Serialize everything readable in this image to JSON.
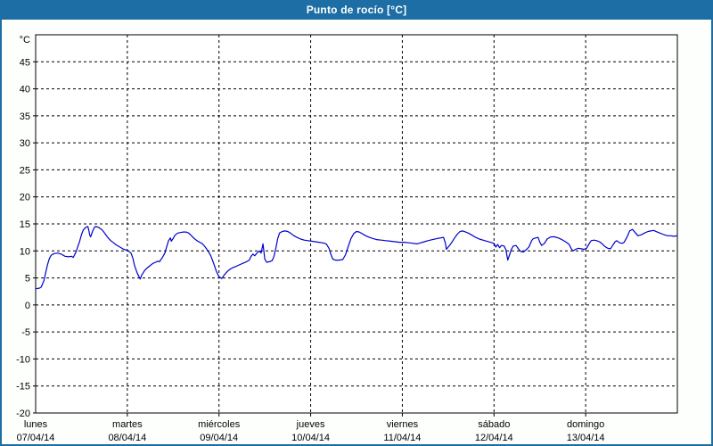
{
  "window": {
    "title": "Punto de rocío [°C]"
  },
  "colors": {
    "accent": "#1C6EA4",
    "line": "#0000CC",
    "grid": "#000000",
    "frame": "#000000",
    "page_bg": "#FCFFFC",
    "plot_bg": "#FEFFFE",
    "title_text": "#FFFFFF",
    "label_text": "#000000"
  },
  "chart_data": {
    "type": "line",
    "title": "Punto de rocío [°C]",
    "xlabel": "",
    "ylabel": "°C",
    "unit_label": "°C",
    "ylim": [
      -20,
      50
    ],
    "yticks": [
      -20,
      -15,
      -10,
      -5,
      0,
      5,
      10,
      15,
      20,
      25,
      30,
      35,
      40,
      45
    ],
    "grid": true,
    "grid_style": "dashed",
    "legend": "none",
    "x_days": [
      {
        "name": "lunes",
        "date": "07/04/14"
      },
      {
        "name": "martes",
        "date": "08/04/14"
      },
      {
        "name": "miércoles",
        "date": "09/04/14"
      },
      {
        "name": "jueves",
        "date": "10/04/14"
      },
      {
        "name": "viernes",
        "date": "11/04/14"
      },
      {
        "name": "sábado",
        "date": "12/04/14"
      },
      {
        "name": "domingo",
        "date": "13/04/14"
      }
    ],
    "series": [
      {
        "name": "Punto de rocío",
        "color": "#0000CC",
        "points": [
          [
            0.0,
            3.0
          ],
          [
            0.04,
            3.1
          ],
          [
            0.06,
            3.3
          ],
          [
            0.09,
            4.5
          ],
          [
            0.11,
            6.0
          ],
          [
            0.13,
            7.5
          ],
          [
            0.15,
            8.6
          ],
          [
            0.17,
            9.2
          ],
          [
            0.2,
            9.5
          ],
          [
            0.24,
            9.6
          ],
          [
            0.28,
            9.4
          ],
          [
            0.32,
            9.0
          ],
          [
            0.36,
            8.9
          ],
          [
            0.39,
            9.0
          ],
          [
            0.41,
            8.8
          ],
          [
            0.44,
            9.8
          ],
          [
            0.46,
            10.8
          ],
          [
            0.48,
            11.8
          ],
          [
            0.5,
            13.0
          ],
          [
            0.52,
            13.9
          ],
          [
            0.55,
            14.4
          ],
          [
            0.57,
            14.5
          ],
          [
            0.58,
            13.8
          ],
          [
            0.59,
            12.9
          ],
          [
            0.6,
            12.6
          ],
          [
            0.62,
            13.6
          ],
          [
            0.64,
            14.3
          ],
          [
            0.65,
            14.5
          ],
          [
            0.68,
            14.4
          ],
          [
            0.7,
            14.2
          ],
          [
            0.73,
            13.8
          ],
          [
            0.76,
            13.1
          ],
          [
            0.79,
            12.4
          ],
          [
            0.82,
            11.9
          ],
          [
            0.85,
            11.5
          ],
          [
            0.88,
            11.1
          ],
          [
            0.92,
            10.7
          ],
          [
            0.95,
            10.4
          ],
          [
            0.98,
            10.2
          ],
          [
            1.01,
            10.0
          ],
          [
            1.04,
            9.6
          ],
          [
            1.06,
            8.7
          ],
          [
            1.08,
            7.2
          ],
          [
            1.11,
            5.8
          ],
          [
            1.14,
            4.8
          ],
          [
            1.16,
            5.6
          ],
          [
            1.19,
            6.4
          ],
          [
            1.22,
            6.9
          ],
          [
            1.25,
            7.3
          ],
          [
            1.28,
            7.7
          ],
          [
            1.31,
            7.9
          ],
          [
            1.33,
            8.1
          ],
          [
            1.35,
            8.0
          ],
          [
            1.38,
            8.7
          ],
          [
            1.41,
            9.6
          ],
          [
            1.43,
            10.8
          ],
          [
            1.45,
            11.9
          ],
          [
            1.47,
            12.4
          ],
          [
            1.48,
            11.8
          ],
          [
            1.5,
            12.3
          ],
          [
            1.52,
            12.9
          ],
          [
            1.55,
            13.3
          ],
          [
            1.58,
            13.4
          ],
          [
            1.61,
            13.5
          ],
          [
            1.64,
            13.5
          ],
          [
            1.67,
            13.3
          ],
          [
            1.7,
            12.8
          ],
          [
            1.73,
            12.3
          ],
          [
            1.76,
            11.9
          ],
          [
            1.79,
            11.6
          ],
          [
            1.82,
            11.3
          ],
          [
            1.85,
            10.7
          ],
          [
            1.88,
            10.0
          ],
          [
            1.91,
            9.1
          ],
          [
            1.94,
            7.8
          ],
          [
            1.97,
            6.3
          ],
          [
            2.0,
            5.2
          ],
          [
            2.03,
            4.9
          ],
          [
            2.06,
            5.6
          ],
          [
            2.09,
            6.2
          ],
          [
            2.12,
            6.6
          ],
          [
            2.15,
            6.9
          ],
          [
            2.18,
            7.1
          ],
          [
            2.22,
            7.4
          ],
          [
            2.26,
            7.7
          ],
          [
            2.3,
            8.0
          ],
          [
            2.33,
            8.3
          ],
          [
            2.35,
            9.0
          ],
          [
            2.37,
            9.4
          ],
          [
            2.39,
            9.1
          ],
          [
            2.42,
            9.7
          ],
          [
            2.44,
            10.0
          ],
          [
            2.46,
            9.6
          ],
          [
            2.48,
            11.3
          ],
          [
            2.5,
            8.5
          ],
          [
            2.52,
            7.9
          ],
          [
            2.55,
            8.0
          ],
          [
            2.58,
            8.2
          ],
          [
            2.6,
            9.0
          ],
          [
            2.62,
            10.5
          ],
          [
            2.64,
            12.2
          ],
          [
            2.66,
            13.3
          ],
          [
            2.69,
            13.6
          ],
          [
            2.72,
            13.7
          ],
          [
            2.75,
            13.6
          ],
          [
            2.78,
            13.3
          ],
          [
            2.81,
            12.9
          ],
          [
            2.85,
            12.5
          ],
          [
            2.89,
            12.2
          ],
          [
            2.93,
            12.0
          ],
          [
            2.97,
            11.9
          ],
          [
            3.01,
            11.8
          ],
          [
            3.05,
            11.7
          ],
          [
            3.09,
            11.6
          ],
          [
            3.13,
            11.5
          ],
          [
            3.17,
            11.3
          ],
          [
            3.2,
            10.5
          ],
          [
            3.22,
            9.4
          ],
          [
            3.24,
            8.5
          ],
          [
            3.27,
            8.3
          ],
          [
            3.31,
            8.3
          ],
          [
            3.35,
            8.4
          ],
          [
            3.38,
            9.3
          ],
          [
            3.41,
            10.8
          ],
          [
            3.44,
            12.3
          ],
          [
            3.47,
            13.2
          ],
          [
            3.5,
            13.6
          ],
          [
            3.53,
            13.5
          ],
          [
            3.56,
            13.2
          ],
          [
            3.6,
            12.8
          ],
          [
            3.64,
            12.5
          ],
          [
            3.68,
            12.3
          ],
          [
            3.72,
            12.1
          ],
          [
            3.77,
            12.0
          ],
          [
            3.82,
            11.9
          ],
          [
            3.87,
            11.8
          ],
          [
            3.92,
            11.7
          ],
          [
            3.97,
            11.6
          ],
          [
            4.02,
            11.6
          ],
          [
            4.07,
            11.5
          ],
          [
            4.12,
            11.4
          ],
          [
            4.16,
            11.3
          ],
          [
            4.2,
            11.5
          ],
          [
            4.24,
            11.7
          ],
          [
            4.28,
            11.9
          ],
          [
            4.33,
            12.1
          ],
          [
            4.38,
            12.3
          ],
          [
            4.42,
            12.4
          ],
          [
            4.45,
            12.5
          ],
          [
            4.47,
            11.4
          ],
          [
            4.48,
            10.3
          ],
          [
            4.51,
            10.9
          ],
          [
            4.54,
            11.6
          ],
          [
            4.57,
            12.4
          ],
          [
            4.6,
            13.1
          ],
          [
            4.63,
            13.6
          ],
          [
            4.66,
            13.7
          ],
          [
            4.69,
            13.5
          ],
          [
            4.72,
            13.3
          ],
          [
            4.76,
            12.9
          ],
          [
            4.8,
            12.5
          ],
          [
            4.84,
            12.2
          ],
          [
            4.88,
            12.0
          ],
          [
            4.92,
            11.8
          ],
          [
            4.96,
            11.6
          ],
          [
            5.0,
            11.4
          ],
          [
            5.02,
            10.7
          ],
          [
            5.04,
            11.2
          ],
          [
            5.06,
            10.6
          ],
          [
            5.08,
            11.0
          ],
          [
            5.11,
            10.9
          ],
          [
            5.13,
            10.2
          ],
          [
            5.15,
            8.3
          ],
          [
            5.17,
            9.3
          ],
          [
            5.19,
            10.3
          ],
          [
            5.21,
            10.9
          ],
          [
            5.24,
            11.0
          ],
          [
            5.27,
            10.3
          ],
          [
            5.29,
            9.9
          ],
          [
            5.32,
            9.8
          ],
          [
            5.35,
            10.2
          ],
          [
            5.38,
            10.7
          ],
          [
            5.41,
            11.9
          ],
          [
            5.43,
            12.3
          ],
          [
            5.46,
            12.4
          ],
          [
            5.48,
            12.5
          ],
          [
            5.5,
            11.6
          ],
          [
            5.52,
            11.0
          ],
          [
            5.55,
            11.4
          ],
          [
            5.58,
            12.2
          ],
          [
            5.62,
            12.6
          ],
          [
            5.66,
            12.6
          ],
          [
            5.7,
            12.4
          ],
          [
            5.74,
            12.1
          ],
          [
            5.78,
            11.7
          ],
          [
            5.82,
            11.2
          ],
          [
            5.84,
            10.5
          ],
          [
            5.86,
            10.0
          ],
          [
            5.89,
            10.3
          ],
          [
            5.92,
            10.5
          ],
          [
            5.95,
            10.4
          ],
          [
            5.98,
            10.3
          ],
          [
            6.01,
            10.5
          ],
          [
            6.04,
            11.4
          ],
          [
            6.06,
            11.9
          ],
          [
            6.09,
            12.0
          ],
          [
            6.12,
            11.9
          ],
          [
            6.15,
            11.7
          ],
          [
            6.18,
            11.3
          ],
          [
            6.21,
            10.8
          ],
          [
            6.24,
            10.5
          ],
          [
            6.27,
            10.4
          ],
          [
            6.29,
            10.9
          ],
          [
            6.32,
            11.7
          ],
          [
            6.34,
            11.9
          ],
          [
            6.37,
            11.5
          ],
          [
            6.4,
            11.4
          ],
          [
            6.42,
            11.6
          ],
          [
            6.45,
            12.5
          ],
          [
            6.48,
            13.7
          ],
          [
            6.51,
            14.0
          ],
          [
            6.54,
            13.4
          ],
          [
            6.57,
            12.8
          ],
          [
            6.61,
            13.0
          ],
          [
            6.64,
            13.3
          ],
          [
            6.68,
            13.6
          ],
          [
            6.71,
            13.7
          ],
          [
            6.74,
            13.8
          ],
          [
            6.78,
            13.5
          ],
          [
            6.81,
            13.3
          ],
          [
            6.84,
            13.1
          ],
          [
            6.87,
            12.9
          ],
          [
            6.9,
            12.8
          ],
          [
            6.93,
            12.8
          ],
          [
            6.96,
            12.7
          ],
          [
            7.0,
            12.8
          ]
        ]
      }
    ]
  }
}
